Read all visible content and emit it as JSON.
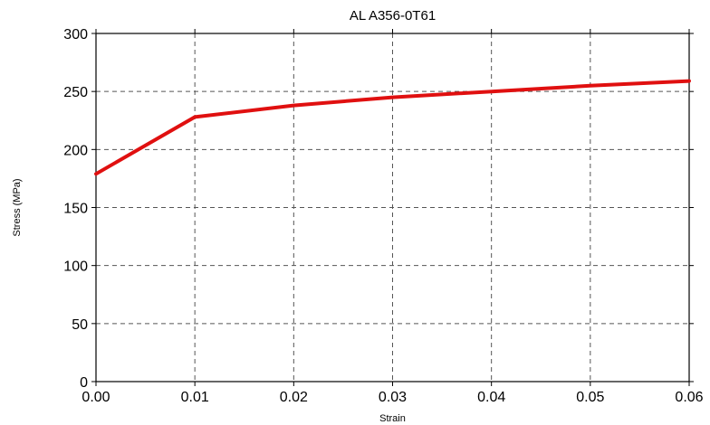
{
  "chart_data": {
    "type": "line",
    "title": "AL A356-0T61",
    "xlabel": "Strain",
    "ylabel": "Stress (MPa)",
    "xlim": [
      0,
      0.06
    ],
    "ylim": [
      0,
      300
    ],
    "x_ticks": [
      "0.00",
      "0.01",
      "0.02",
      "0.03",
      "0.04",
      "0.05",
      "0.06"
    ],
    "y_ticks": [
      "0",
      "50",
      "100",
      "150",
      "200",
      "250",
      "300"
    ],
    "grid": true,
    "grid_style": "dashed",
    "series": [
      {
        "color": "#e01010",
        "x": [
          0.0,
          0.01,
          0.02,
          0.03,
          0.04,
          0.05,
          0.06
        ],
        "y": [
          179,
          228,
          238,
          245,
          250,
          255,
          259
        ]
      }
    ]
  }
}
